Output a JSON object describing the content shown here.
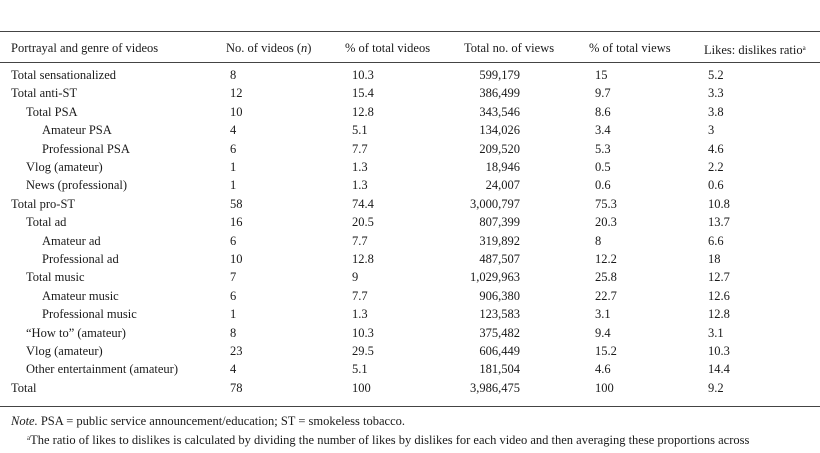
{
  "headers": {
    "label": "Portrayal and genre of videos",
    "videos": "No. of videos (n)",
    "pct_videos": "% of total videos",
    "views": "Total no. of views",
    "pct_views": "% of total views",
    "ratio": "Likes: dislikes ratio",
    "ratio_marker": "a"
  },
  "rows": [
    {
      "label": "Total sensationalized",
      "indent": 0,
      "videos": "8",
      "pct_videos": "10.3",
      "views": "599,179",
      "pct_views": "15",
      "ratio": "5.2"
    },
    {
      "label": "Total anti-ST",
      "indent": 0,
      "videos": "12",
      "pct_videos": "15.4",
      "views": "386,499",
      "pct_views": "9.7",
      "ratio": "3.3"
    },
    {
      "label": "Total PSA",
      "indent": 1,
      "videos": "10",
      "pct_videos": "12.8",
      "views": "343,546",
      "pct_views": "8.6",
      "ratio": "3.8"
    },
    {
      "label": "Amateur PSA",
      "indent": 2,
      "videos": "4",
      "pct_videos": "5.1",
      "views": "134,026",
      "pct_views": "3.4",
      "ratio": "3"
    },
    {
      "label": "Professional PSA",
      "indent": 2,
      "videos": "6",
      "pct_videos": "7.7",
      "views": "209,520",
      "pct_views": "5.3",
      "ratio": "4.6"
    },
    {
      "label": "Vlog (amateur)",
      "indent": 1,
      "videos": "1",
      "pct_videos": "1.3",
      "views": "18,946",
      "pct_views": "0.5",
      "ratio": "2.2"
    },
    {
      "label": "News (professional)",
      "indent": 1,
      "videos": "1",
      "pct_videos": "1.3",
      "views": "24,007",
      "pct_views": "0.6",
      "ratio": "0.6"
    },
    {
      "label": "Total pro-ST",
      "indent": 0,
      "videos": "58",
      "pct_videos": "74.4",
      "views": "3,000,797",
      "pct_views": "75.3",
      "ratio": "10.8"
    },
    {
      "label": "Total ad",
      "indent": 1,
      "videos": "16",
      "pct_videos": "20.5",
      "views": "807,399",
      "pct_views": "20.3",
      "ratio": "13.7"
    },
    {
      "label": "Amateur ad",
      "indent": 2,
      "videos": "6",
      "pct_videos": "7.7",
      "views": "319,892",
      "pct_views": "8",
      "ratio": "6.6"
    },
    {
      "label": "Professional ad",
      "indent": 2,
      "videos": "10",
      "pct_videos": "12.8",
      "views": "487,507",
      "pct_views": "12.2",
      "ratio": "18"
    },
    {
      "label": "Total music",
      "indent": 1,
      "videos": "7",
      "pct_videos": "9",
      "views": "1,029,963",
      "pct_views": "25.8",
      "ratio": "12.7"
    },
    {
      "label": "Amateur music",
      "indent": 2,
      "videos": "6",
      "pct_videos": "7.7",
      "views": "906,380",
      "pct_views": "22.7",
      "ratio": "12.6"
    },
    {
      "label": "Professional music",
      "indent": 2,
      "videos": "1",
      "pct_videos": "1.3",
      "views": "123,583",
      "pct_views": "3.1",
      "ratio": "12.8"
    },
    {
      "label": "“How to” (amateur)",
      "indent": 1,
      "videos": "8",
      "pct_videos": "10.3",
      "views": "375,482",
      "pct_views": "9.4",
      "ratio": "3.1"
    },
    {
      "label": "Vlog (amateur)",
      "indent": 1,
      "videos": "23",
      "pct_videos": "29.5",
      "views": "606,449",
      "pct_views": "15.2",
      "ratio": "10.3"
    },
    {
      "label": "Other entertainment (amateur)",
      "indent": 1,
      "videos": "4",
      "pct_videos": "5.1",
      "views": "181,504",
      "pct_views": "4.6",
      "ratio": "14.4"
    },
    {
      "label": "Total",
      "indent": 0,
      "videos": "78",
      "pct_videos": "100",
      "views": "3,986,475",
      "pct_views": "100",
      "ratio": "9.2"
    }
  ],
  "note": {
    "lead": "Note.",
    "text": " PSA = public service announcement/education; ST = smokeless tobacco."
  },
  "footnote": {
    "marker": "a",
    "text": "The ratio of likes to dislikes is calculated by dividing the number of likes by dislikes for each video and then averaging these proportions across"
  }
}
